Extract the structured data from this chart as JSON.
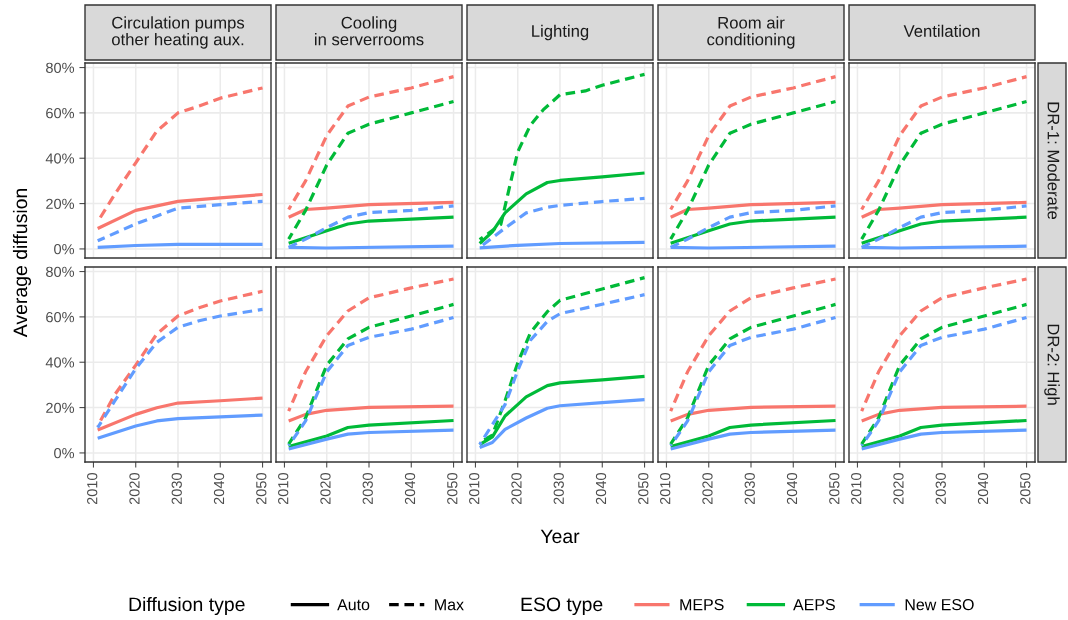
{
  "chart_data": [
    {
      "type": "line",
      "title": "Circulation pumps\nother heating aux.",
      "ylabel": "Average diffusion",
      "tick_labels": "y",
      "grid": true,
      "legend": "bottom",
      "legend_title": "ESO type",
      "annotations": [
        "Diffusion type",
        "Auto",
        "Max"
      ],
      "xlim": [
        2008,
        2052
      ],
      "xticks": [
        2010,
        2020,
        2030,
        2040,
        2050
      ],
      "ylim": [
        -4,
        82
      ],
      "yticks": [
        {
          "value": 0,
          "label": "0%"
        },
        {
          "value": 20,
          "label": "20%"
        },
        {
          "value": 40,
          "label": "40%"
        },
        {
          "value": 60,
          "label": "60%"
        },
        {
          "value": 80,
          "label": "80%"
        }
      ],
      "series": [
        {
          "name": "MEPS",
          "color": "#f8766d",
          "line_style": "solid",
          "x": [
            2011,
            2020,
            2030,
            2040,
            2050
          ],
          "values": [
            9,
            17,
            21,
            22.5,
            24
          ]
        },
        {
          "color": "#f8766d",
          "line_style": "dashed",
          "x": [
            2011,
            2015,
            2020,
            2025,
            2030,
            2035,
            2040,
            2050
          ],
          "values": [
            12,
            24,
            38,
            52,
            60,
            63,
            66.5,
            71
          ]
        },
        {
          "name": "New ESO",
          "color": "#619cff",
          "line_style": "solid",
          "x": [
            2011,
            2020,
            2030,
            2050
          ],
          "values": [
            0.7,
            1.5,
            2,
            2
          ]
        },
        {
          "color": "#619cff",
          "line_style": "dashed",
          "x": [
            2011,
            2020,
            2030,
            2040,
            2050
          ],
          "values": [
            3.6,
            11,
            18,
            19.5,
            21
          ]
        }
      ]
    },
    {
      "type": "line",
      "title": "Cooling\nin serverrooms",
      "tick_labels": false,
      "grid": true,
      "xlim": [
        2008,
        2052
      ],
      "xticks": [
        2010,
        2020,
        2030,
        2040,
        2050
      ],
      "ylim": [
        -4,
        82
      ],
      "yticks": [
        {
          "value": 0,
          "label": null
        },
        {
          "value": 20,
          "label": null
        },
        {
          "value": 40,
          "label": null
        },
        {
          "value": 60,
          "label": null
        },
        {
          "value": 80,
          "label": null
        }
      ],
      "series": [
        {
          "color": "#f8766d",
          "line_style": "solid",
          "x": [
            2011,
            2015,
            2020,
            2030,
            2050
          ],
          "values": [
            14,
            17.4,
            18,
            19.5,
            20.5
          ]
        },
        {
          "color": "#f8766d",
          "line_style": "dashed",
          "x": [
            2011,
            2015,
            2020,
            2025,
            2030,
            2040,
            2050
          ],
          "values": [
            17.4,
            30,
            50,
            63,
            67,
            71,
            76
          ]
        },
        {
          "name": "AEPS",
          "color": "#00ba38",
          "line_style": "solid",
          "x": [
            2011,
            2020,
            2025,
            2030,
            2050
          ],
          "values": [
            2.5,
            8,
            11,
            12.3,
            14
          ]
        },
        {
          "color": "#00ba38",
          "line_style": "dashed",
          "x": [
            2011,
            2015,
            2020,
            2025,
            2030,
            2040,
            2050
          ],
          "values": [
            4.3,
            17,
            37,
            51,
            55,
            60,
            65
          ]
        },
        {
          "color": "#619cff",
          "line_style": "solid",
          "x": [
            2011,
            2020,
            2050
          ],
          "values": [
            0.7,
            0.4,
            1.2
          ]
        },
        {
          "color": "#619cff",
          "line_style": "dashed",
          "x": [
            2011,
            2015,
            2020,
            2025,
            2030,
            2040,
            2050
          ],
          "values": [
            0.7,
            4.3,
            9.4,
            14,
            16,
            17,
            19
          ]
        }
      ]
    },
    {
      "type": "line",
      "title": "Lighting",
      "tick_labels": false,
      "grid": true,
      "xlim": [
        2008,
        2052
      ],
      "xticks": [
        2010,
        2020,
        2030,
        2040,
        2050
      ],
      "ylim": [
        -4,
        82
      ],
      "yticks": [
        {
          "value": 0,
          "label": null
        },
        {
          "value": 20,
          "label": null
        },
        {
          "value": 40,
          "label": null
        },
        {
          "value": 60,
          "label": null
        },
        {
          "value": 80,
          "label": null
        }
      ],
      "series": [
        {
          "color": "#00ba38",
          "line_style": "solid",
          "x": [
            2011,
            2014,
            2017,
            2022,
            2027,
            2030,
            2040,
            2050
          ],
          "values": [
            2.4,
            7.5,
            15.9,
            24.3,
            29.3,
            30.2,
            31.8,
            33.5
          ]
        },
        {
          "color": "#00ba38",
          "line_style": "dashed",
          "x": [
            2011,
            2016,
            2020,
            2023,
            2026,
            2030,
            2036,
            2040,
            2050
          ],
          "values": [
            4.1,
            10.8,
            42.8,
            54.6,
            61.3,
            68,
            69.7,
            72.2,
            77
          ]
        },
        {
          "color": "#619cff",
          "line_style": "solid",
          "x": [
            2011,
            2020,
            2030,
            2050
          ],
          "values": [
            0.5,
            1.6,
            2.4,
            2.9
          ]
        },
        {
          "color": "#619cff",
          "line_style": "dashed",
          "x": [
            2011,
            2017,
            2022,
            2027,
            2030,
            2040,
            2050
          ],
          "values": [
            0.7,
            9.2,
            15.9,
            18.4,
            19.2,
            20.9,
            22.3
          ]
        }
      ]
    },
    {
      "type": "line",
      "title": "Room air\nconditioning",
      "tick_labels": false,
      "grid": true,
      "xlim": [
        2008,
        2052
      ],
      "xticks": [
        2010,
        2020,
        2030,
        2040,
        2050
      ],
      "ylim": [
        -4,
        82
      ],
      "yticks": [
        {
          "value": 0,
          "label": null
        },
        {
          "value": 20,
          "label": null
        },
        {
          "value": 40,
          "label": null
        },
        {
          "value": 60,
          "label": null
        },
        {
          "value": 80,
          "label": null
        }
      ],
      "series": [
        {
          "color": "#f8766d",
          "line_style": "solid",
          "x": [
            2011,
            2015,
            2020,
            2030,
            2050
          ],
          "values": [
            14,
            17.4,
            18,
            19.5,
            20.5
          ]
        },
        {
          "color": "#f8766d",
          "line_style": "dashed",
          "x": [
            2011,
            2015,
            2020,
            2025,
            2030,
            2040,
            2050
          ],
          "values": [
            17.4,
            30,
            50,
            63,
            67,
            71,
            76
          ]
        },
        {
          "color": "#00ba38",
          "line_style": "solid",
          "x": [
            2011,
            2020,
            2025,
            2030,
            2050
          ],
          "values": [
            2.5,
            8,
            11,
            12.3,
            14
          ]
        },
        {
          "color": "#00ba38",
          "line_style": "dashed",
          "x": [
            2011,
            2015,
            2020,
            2025,
            2030,
            2040,
            2050
          ],
          "values": [
            4.3,
            17,
            37,
            51,
            55,
            60,
            65
          ]
        },
        {
          "color": "#619cff",
          "line_style": "solid",
          "x": [
            2011,
            2020,
            2050
          ],
          "values": [
            0.7,
            0.4,
            1.2
          ]
        },
        {
          "color": "#619cff",
          "line_style": "dashed",
          "x": [
            2011,
            2015,
            2020,
            2025,
            2030,
            2040,
            2050
          ],
          "values": [
            0.7,
            4.3,
            9.4,
            14,
            16,
            17,
            19
          ]
        }
      ]
    },
    {
      "type": "line",
      "title": "Ventilation",
      "y2label": "DR-1: Moderate",
      "tick_labels": false,
      "grid": true,
      "xlim": [
        2008,
        2052
      ],
      "xticks": [
        2010,
        2020,
        2030,
        2040,
        2050
      ],
      "ylim": [
        -4,
        82
      ],
      "yticks": [
        {
          "value": 0,
          "label": null
        },
        {
          "value": 20,
          "label": null
        },
        {
          "value": 40,
          "label": null
        },
        {
          "value": 60,
          "label": null
        },
        {
          "value": 80,
          "label": null
        }
      ],
      "series": [
        {
          "color": "#f8766d",
          "line_style": "solid",
          "x": [
            2011,
            2015,
            2020,
            2030,
            2050
          ],
          "values": [
            14,
            17.4,
            18,
            19.5,
            20.5
          ]
        },
        {
          "color": "#f8766d",
          "line_style": "dashed",
          "x": [
            2011,
            2015,
            2020,
            2025,
            2030,
            2040,
            2050
          ],
          "values": [
            17.4,
            30,
            50,
            63,
            67,
            71,
            76
          ]
        },
        {
          "color": "#00ba38",
          "line_style": "solid",
          "x": [
            2011,
            2020,
            2025,
            2030,
            2050
          ],
          "values": [
            2.5,
            8,
            11,
            12.3,
            14
          ]
        },
        {
          "color": "#00ba38",
          "line_style": "dashed",
          "x": [
            2011,
            2015,
            2020,
            2025,
            2030,
            2040,
            2050
          ],
          "values": [
            4.3,
            17,
            37,
            51,
            55,
            60,
            65
          ]
        },
        {
          "color": "#619cff",
          "line_style": "solid",
          "x": [
            2011,
            2020,
            2050
          ],
          "values": [
            0.7,
            0.4,
            1.2
          ]
        },
        {
          "color": "#619cff",
          "line_style": "dashed",
          "x": [
            2011,
            2015,
            2020,
            2025,
            2030,
            2040,
            2050
          ],
          "values": [
            0.7,
            4.3,
            9.4,
            14,
            16,
            17,
            19
          ]
        }
      ]
    },
    {
      "type": "line",
      "grid": true,
      "xlim": [
        2008,
        2052
      ],
      "xticks": [
        2010,
        2020,
        2030,
        2040,
        2050
      ],
      "ylim": [
        -4,
        82
      ],
      "yticks": [
        {
          "value": 0,
          "label": "0%"
        },
        {
          "value": 20,
          "label": "20%"
        },
        {
          "value": 40,
          "label": "40%"
        },
        {
          "value": 60,
          "label": "60%"
        },
        {
          "value": 80,
          "label": "80%"
        }
      ],
      "series": [
        {
          "color": "#f8766d",
          "line_style": "solid",
          "x": [
            2011,
            2020,
            2025,
            2030,
            2040,
            2050
          ],
          "values": [
            10.1,
            17,
            19.9,
            22,
            23,
            24.2
          ]
        },
        {
          "color": "#f8766d",
          "line_style": "dashed",
          "x": [
            2011,
            2015,
            2020,
            2025,
            2030,
            2035,
            2040,
            2050
          ],
          "values": [
            11.9,
            25.6,
            38.7,
            52.5,
            60.4,
            64,
            67,
            71.3
          ]
        },
        {
          "color": "#619cff",
          "line_style": "solid",
          "x": [
            2011,
            2020,
            2025,
            2030,
            2040,
            2050
          ],
          "values": [
            6.5,
            11.9,
            14.1,
            15.1,
            15.9,
            16.7
          ]
        },
        {
          "color": "#619cff",
          "line_style": "dashed",
          "x": [
            2011,
            2015,
            2020,
            2025,
            2030,
            2035,
            2040,
            2050
          ],
          "values": [
            11.2,
            22.8,
            37.2,
            48.8,
            55.4,
            58.3,
            60.4,
            63.3
          ]
        }
      ]
    },
    {
      "type": "line",
      "tick_labels": "x",
      "grid": true,
      "xlim": [
        2008,
        2052
      ],
      "xticks": [
        2010,
        2020,
        2030,
        2040,
        2050
      ],
      "ylim": [
        -4,
        82
      ],
      "yticks": [
        {
          "value": 0,
          "label": null
        },
        {
          "value": 20,
          "label": null
        },
        {
          "value": 40,
          "label": null
        },
        {
          "value": 60,
          "label": null
        },
        {
          "value": 80,
          "label": null
        }
      ],
      "series": [
        {
          "color": "#f8766d",
          "line_style": "solid",
          "x": [
            2011,
            2015,
            2020,
            2030,
            2050
          ],
          "values": [
            14.1,
            17,
            18.8,
            20.1,
            20.6
          ]
        },
        {
          "color": "#f8766d",
          "line_style": "dashed",
          "x": [
            2011,
            2015,
            2020,
            2025,
            2030,
            2040,
            2050
          ],
          "values": [
            18.4,
            35.8,
            51.7,
            62.6,
            68.4,
            72.8,
            76.7
          ]
        },
        {
          "color": "#00ba38",
          "line_style": "solid",
          "x": [
            2011,
            2020,
            2025,
            2030,
            2050
          ],
          "values": [
            2.8,
            7.5,
            11.2,
            12.3,
            14.3
          ]
        },
        {
          "color": "#00ba38",
          "line_style": "dashed",
          "x": [
            2011,
            2015,
            2020,
            2025,
            2030,
            2040,
            2050
          ],
          "values": [
            3.9,
            15.5,
            38.7,
            50.3,
            55.4,
            60.4,
            65.5
          ]
        },
        {
          "color": "#619cff",
          "line_style": "solid",
          "x": [
            2011,
            2020,
            2025,
            2030,
            2050
          ],
          "values": [
            1.7,
            6.1,
            8.3,
            9,
            10.1
          ]
        },
        {
          "color": "#619cff",
          "line_style": "dashed",
          "x": [
            2011,
            2015,
            2020,
            2025,
            2030,
            2040,
            2050
          ],
          "values": [
            3.2,
            14.1,
            35.8,
            47.4,
            51,
            54.6,
            59.7
          ]
        }
      ]
    },
    {
      "type": "line",
      "xlabel": "Year",
      "tick_labels": "x",
      "grid": true,
      "xlim": [
        2008,
        2052
      ],
      "xticks": [
        2010,
        2020,
        2030,
        2040,
        2050
      ],
      "ylim": [
        -4,
        82
      ],
      "yticks": [
        {
          "value": 0,
          "label": null
        },
        {
          "value": 20,
          "label": null
        },
        {
          "value": 40,
          "label": null
        },
        {
          "value": 60,
          "label": null
        },
        {
          "value": 80,
          "label": null
        }
      ],
      "series": [
        {
          "color": "#00ba38",
          "line_style": "solid",
          "x": [
            2011,
            2014,
            2017,
            2022,
            2027,
            2030,
            2040,
            2050
          ],
          "values": [
            3.7,
            7.1,
            16.3,
            24.7,
            29.7,
            30.9,
            32.2,
            33.8
          ]
        },
        {
          "color": "#00ba38",
          "line_style": "dashed",
          "x": [
            2011,
            2014,
            2017,
            2020,
            2023,
            2027,
            2030,
            2040,
            2050
          ],
          "values": [
            4.6,
            7.9,
            23,
            39.7,
            53,
            62.3,
            67.3,
            72.3,
            77.3
          ]
        },
        {
          "color": "#619cff",
          "line_style": "solid",
          "x": [
            2011,
            2014,
            2017,
            2022,
            2027,
            2030,
            2040,
            2050
          ],
          "values": [
            2.4,
            4.6,
            10.4,
            15.4,
            19.7,
            20.8,
            22.2,
            23.5
          ]
        },
        {
          "color": "#619cff",
          "line_style": "dashed",
          "x": [
            2011,
            2017,
            2020,
            2023,
            2027,
            2030,
            2040,
            2050
          ],
          "values": [
            3.7,
            21.3,
            36.3,
            49.7,
            58,
            61.4,
            65.6,
            69.8
          ]
        }
      ]
    },
    {
      "type": "line",
      "tick_labels": "x",
      "grid": true,
      "xlim": [
        2008,
        2052
      ],
      "xticks": [
        2010,
        2020,
        2030,
        2040,
        2050
      ],
      "ylim": [
        -4,
        82
      ],
      "yticks": [
        {
          "value": 0,
          "label": null
        },
        {
          "value": 20,
          "label": null
        },
        {
          "value": 40,
          "label": null
        },
        {
          "value": 60,
          "label": null
        },
        {
          "value": 80,
          "label": null
        }
      ],
      "series": [
        {
          "color": "#f8766d",
          "line_style": "solid",
          "x": [
            2011,
            2015,
            2020,
            2030,
            2050
          ],
          "values": [
            14.1,
            17,
            18.8,
            20.1,
            20.6
          ]
        },
        {
          "color": "#f8766d",
          "line_style": "dashed",
          "x": [
            2011,
            2015,
            2020,
            2025,
            2030,
            2040,
            2050
          ],
          "values": [
            18.4,
            35.8,
            51.7,
            62.6,
            68.4,
            72.8,
            76.7
          ]
        },
        {
          "color": "#00ba38",
          "line_style": "solid",
          "x": [
            2011,
            2020,
            2025,
            2030,
            2050
          ],
          "values": [
            2.8,
            7.5,
            11.2,
            12.3,
            14.3
          ]
        },
        {
          "color": "#00ba38",
          "line_style": "dashed",
          "x": [
            2011,
            2015,
            2020,
            2025,
            2030,
            2040,
            2050
          ],
          "values": [
            3.9,
            15.5,
            38.7,
            50.3,
            55.4,
            60.4,
            65.5
          ]
        },
        {
          "color": "#619cff",
          "line_style": "solid",
          "x": [
            2011,
            2020,
            2025,
            2030,
            2050
          ],
          "values": [
            1.7,
            6.1,
            8.3,
            9,
            10.1
          ]
        },
        {
          "color": "#619cff",
          "line_style": "dashed",
          "x": [
            2011,
            2015,
            2020,
            2025,
            2030,
            2040,
            2050
          ],
          "values": [
            3.2,
            14.1,
            35.8,
            47.4,
            51,
            54.6,
            59.7
          ]
        }
      ]
    },
    {
      "type": "line",
      "y2label": "DR-2: High",
      "tick_labels": "x",
      "grid": true,
      "xlim": [
        2008,
        2052
      ],
      "xticks": [
        2010,
        2020,
        2030,
        2040,
        2050
      ],
      "ylim": [
        -4,
        82
      ],
      "yticks": [
        {
          "value": 0,
          "label": null
        },
        {
          "value": 20,
          "label": null
        },
        {
          "value": 40,
          "label": null
        },
        {
          "value": 60,
          "label": null
        },
        {
          "value": 80,
          "label": null
        }
      ],
      "series": [
        {
          "color": "#f8766d",
          "line_style": "solid",
          "x": [
            2011,
            2015,
            2020,
            2030,
            2050
          ],
          "values": [
            14.1,
            17,
            18.8,
            20.1,
            20.6
          ]
        },
        {
          "color": "#f8766d",
          "line_style": "dashed",
          "x": [
            2011,
            2015,
            2020,
            2025,
            2030,
            2040,
            2050
          ],
          "values": [
            18.4,
            35.8,
            51.7,
            62.6,
            68.4,
            72.8,
            76.7
          ]
        },
        {
          "color": "#00ba38",
          "line_style": "solid",
          "x": [
            2011,
            2020,
            2025,
            2030,
            2050
          ],
          "values": [
            2.8,
            7.5,
            11.2,
            12.3,
            14.3
          ]
        },
        {
          "color": "#00ba38",
          "line_style": "dashed",
          "x": [
            2011,
            2015,
            2020,
            2025,
            2030,
            2040,
            2050
          ],
          "values": [
            3.9,
            15.5,
            38.7,
            50.3,
            55.4,
            60.4,
            65.5
          ]
        },
        {
          "color": "#619cff",
          "line_style": "solid",
          "x": [
            2011,
            2020,
            2025,
            2030,
            2050
          ],
          "values": [
            1.7,
            6.1,
            8.3,
            9,
            10.1
          ]
        },
        {
          "color": "#619cff",
          "line_style": "dashed",
          "x": [
            2011,
            2015,
            2020,
            2025,
            2030,
            2040,
            2050
          ],
          "values": [
            3.2,
            14.1,
            35.8,
            47.4,
            51,
            54.6,
            59.7
          ]
        }
      ]
    }
  ]
}
